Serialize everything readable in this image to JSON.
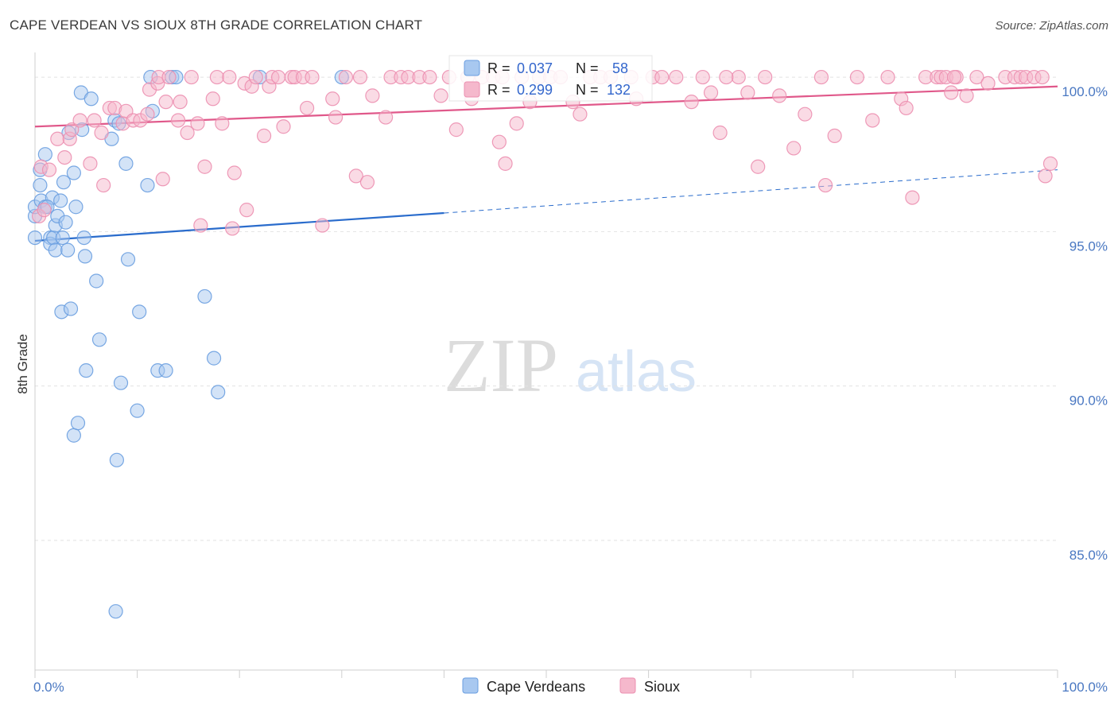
{
  "header": {
    "title": "CAPE VERDEAN VS SIOUX 8TH GRADE CORRELATION CHART",
    "source": "Source: ZipAtlas.com"
  },
  "watermark": {
    "zip": "ZIP",
    "atlas": "atlas"
  },
  "colors": {
    "blue_fill": "#a8c8f0",
    "blue_stroke": "#6a9ee0",
    "blue_line": "#2a6ccc",
    "pink_fill": "#f5b8cc",
    "pink_stroke": "#ec8fb0",
    "pink_line": "#e0588a",
    "tick_label": "#4a78c2"
  },
  "legend_top": {
    "rows": [
      {
        "r_label": "R = ",
        "r_value": "0.037",
        "n_label": "N = ",
        "n_value": "58"
      },
      {
        "r_label": "R = ",
        "r_value": "0.299",
        "n_label": "N = ",
        "n_value": "132"
      }
    ]
  },
  "legend_bottom": [
    "Cape Verdeans",
    "Sioux"
  ],
  "chart_data": {
    "type": "scatter",
    "title": "CAPE VERDEAN VS SIOUX 8TH GRADE CORRELATION CHART",
    "xlabel": "",
    "ylabel": "8th Grade",
    "xlim": [
      0,
      100
    ],
    "ylim": [
      80.8,
      100.8
    ],
    "x_tick_labels": [
      {
        "value": 0,
        "label": "0.0%"
      },
      {
        "value": 100,
        "label": "100.0%"
      }
    ],
    "y_tick_labels": [
      {
        "value": 100,
        "label": "100.0%"
      },
      {
        "value": 95,
        "label": "95.0%"
      },
      {
        "value": 90,
        "label": "90.0%"
      },
      {
        "value": 85,
        "label": "85.0%"
      }
    ],
    "grid": "horizontal dashed",
    "legend_position": "top-center",
    "series": [
      {
        "name": "Cape Verdeans",
        "R": 0.037,
        "N": 58,
        "trend": {
          "x_start": 0,
          "y_start": 94.7,
          "x_solid_end": 40,
          "y_solid_end": 95.6,
          "x_end": 100,
          "y_end": 97.0
        },
        "points": [
          [
            0,
            94.8
          ],
          [
            0,
            95.5
          ],
          [
            0,
            95.8
          ],
          [
            0.5,
            96.5
          ],
          [
            0.5,
            97.0
          ],
          [
            0.6,
            96.0
          ],
          [
            1,
            97.5
          ],
          [
            1,
            95.8
          ],
          [
            1.5,
            94.8
          ],
          [
            1.5,
            94.6
          ],
          [
            1.7,
            96.1
          ],
          [
            1.8,
            94.8
          ],
          [
            2,
            95.2
          ],
          [
            2,
            94.4
          ],
          [
            2.2,
            95.5
          ],
          [
            2.5,
            96.0
          ],
          [
            2.6,
            92.4
          ],
          [
            2.7,
            94.8
          ],
          [
            2.8,
            96.6
          ],
          [
            3,
            95.3
          ],
          [
            3.2,
            94.4
          ],
          [
            3.3,
            98.2
          ],
          [
            3.5,
            92.5
          ],
          [
            3.8,
            96.9
          ],
          [
            3.8,
            88.4
          ],
          [
            4,
            95.8
          ],
          [
            4.2,
            88.8
          ],
          [
            4.5,
            99.5
          ],
          [
            4.6,
            98.3
          ],
          [
            4.8,
            94.8
          ],
          [
            4.9,
            94.2
          ],
          [
            5,
            90.5
          ],
          [
            5.5,
            99.3
          ],
          [
            6,
            93.4
          ],
          [
            6.3,
            91.5
          ],
          [
            7.5,
            98.0
          ],
          [
            7.8,
            98.6
          ],
          [
            8,
            87.6
          ],
          [
            8.2,
            98.5
          ],
          [
            8.4,
            90.1
          ],
          [
            8.9,
            97.2
          ],
          [
            9.1,
            94.1
          ],
          [
            10,
            89.2
          ],
          [
            10.2,
            92.4
          ],
          [
            11,
            96.5
          ],
          [
            11.3,
            100
          ],
          [
            11.5,
            98.9
          ],
          [
            12,
            90.5
          ],
          [
            12.8,
            90.5
          ],
          [
            13.4,
            100
          ],
          [
            13.8,
            100
          ],
          [
            16.6,
            92.9
          ],
          [
            17.5,
            90.9
          ],
          [
            17.9,
            89.8
          ],
          [
            22,
            100
          ],
          [
            30,
            100
          ],
          [
            7.9,
            82.7
          ],
          [
            1.2,
            95.8
          ]
        ]
      },
      {
        "name": "Sioux",
        "R": 0.299,
        "N": 132,
        "trend": {
          "x_start": 0,
          "y_start": 98.4,
          "x_end": 100,
          "y_end": 99.7
        },
        "points": [
          [
            0.4,
            95.5
          ],
          [
            0.6,
            97.1
          ],
          [
            0.9,
            95.7
          ],
          [
            1.4,
            97.0
          ],
          [
            2.2,
            98.0
          ],
          [
            2.9,
            97.4
          ],
          [
            3.4,
            98.0
          ],
          [
            3.6,
            98.3
          ],
          [
            4.4,
            98.6
          ],
          [
            5.4,
            97.2
          ],
          [
            5.8,
            98.6
          ],
          [
            6.5,
            98.2
          ],
          [
            6.7,
            96.5
          ],
          [
            7.3,
            99.0
          ],
          [
            7.8,
            99.0
          ],
          [
            8.6,
            98.5
          ],
          [
            8.9,
            98.9
          ],
          [
            9.6,
            98.6
          ],
          [
            10.3,
            98.6
          ],
          [
            11,
            98.8
          ],
          [
            11.2,
            99.6
          ],
          [
            12,
            99.8
          ],
          [
            12.1,
            100
          ],
          [
            12.5,
            96.7
          ],
          [
            12.8,
            99.2
          ],
          [
            13.1,
            100
          ],
          [
            14,
            98.6
          ],
          [
            14.2,
            99.2
          ],
          [
            14.9,
            98.2
          ],
          [
            15.3,
            100
          ],
          [
            15.9,
            98.5
          ],
          [
            16.2,
            95.2
          ],
          [
            16.6,
            97.1
          ],
          [
            17.4,
            99.3
          ],
          [
            17.8,
            100
          ],
          [
            18.3,
            98.5
          ],
          [
            19,
            100
          ],
          [
            19.3,
            95.1
          ],
          [
            19.5,
            96.9
          ],
          [
            20.5,
            99.8
          ],
          [
            20.7,
            95.7
          ],
          [
            21.2,
            99.7
          ],
          [
            21.6,
            100
          ],
          [
            22.4,
            98.1
          ],
          [
            22.9,
            99.7
          ],
          [
            23.2,
            100
          ],
          [
            23.8,
            100
          ],
          [
            24.3,
            98.4
          ],
          [
            25.1,
            100
          ],
          [
            25.4,
            100
          ],
          [
            26.2,
            100
          ],
          [
            26.6,
            99.0
          ],
          [
            27.1,
            100
          ],
          [
            28.1,
            95.2
          ],
          [
            29.1,
            99.3
          ],
          [
            29.4,
            98.7
          ],
          [
            30.4,
            100
          ],
          [
            31.4,
            96.8
          ],
          [
            31.8,
            100
          ],
          [
            32.5,
            96.6
          ],
          [
            33,
            99.4
          ],
          [
            34.3,
            98.7
          ],
          [
            34.8,
            100
          ],
          [
            35.8,
            100
          ],
          [
            36.5,
            100
          ],
          [
            37.6,
            100
          ],
          [
            38.6,
            100
          ],
          [
            39.7,
            99.4
          ],
          [
            40.5,
            100
          ],
          [
            41.2,
            98.3
          ],
          [
            42.3,
            100
          ],
          [
            42.7,
            99.3
          ],
          [
            43.7,
            100
          ],
          [
            44.8,
            100
          ],
          [
            45.4,
            97.9
          ],
          [
            45.7,
            100
          ],
          [
            46,
            97.2
          ],
          [
            47.1,
            98.5
          ],
          [
            47.6,
            100
          ],
          [
            48.4,
            99.2
          ],
          [
            49.3,
            100
          ],
          [
            50.4,
            100
          ],
          [
            51.4,
            100
          ],
          [
            52.6,
            99.2
          ],
          [
            53.3,
            98.8
          ],
          [
            54.3,
            100
          ],
          [
            55.3,
            100
          ],
          [
            56.3,
            100
          ],
          [
            58.3,
            100
          ],
          [
            58.8,
            99.3
          ],
          [
            60.4,
            100
          ],
          [
            61.3,
            100
          ],
          [
            62.7,
            100
          ],
          [
            64.2,
            99.2
          ],
          [
            65.3,
            100
          ],
          [
            66.1,
            99.5
          ],
          [
            67,
            98.2
          ],
          [
            68.8,
            100
          ],
          [
            69.7,
            99.5
          ],
          [
            70.7,
            97.1
          ],
          [
            71.4,
            100
          ],
          [
            72.8,
            99.4
          ],
          [
            74.2,
            97.7
          ],
          [
            75.3,
            98.8
          ],
          [
            76.9,
            100
          ],
          [
            77.3,
            96.5
          ],
          [
            78.2,
            98.1
          ],
          [
            80.4,
            100
          ],
          [
            81.9,
            98.6
          ],
          [
            83.4,
            100
          ],
          [
            84.7,
            99.3
          ],
          [
            85.2,
            99.0
          ],
          [
            85.8,
            96.1
          ],
          [
            87.1,
            100
          ],
          [
            88.2,
            100
          ],
          [
            88.6,
            100
          ],
          [
            89.1,
            100
          ],
          [
            89.6,
            99.5
          ],
          [
            90.1,
            100
          ],
          [
            91.1,
            99.4
          ],
          [
            92.1,
            100
          ],
          [
            93.2,
            99.8
          ],
          [
            94.9,
            100
          ],
          [
            95.8,
            100
          ],
          [
            96.4,
            100
          ],
          [
            96.9,
            100
          ],
          [
            97.7,
            100
          ],
          [
            98.5,
            100
          ],
          [
            98.8,
            96.8
          ],
          [
            99.3,
            97.2
          ],
          [
            89.9,
            100
          ],
          [
            67.6,
            100
          ]
        ]
      }
    ]
  }
}
